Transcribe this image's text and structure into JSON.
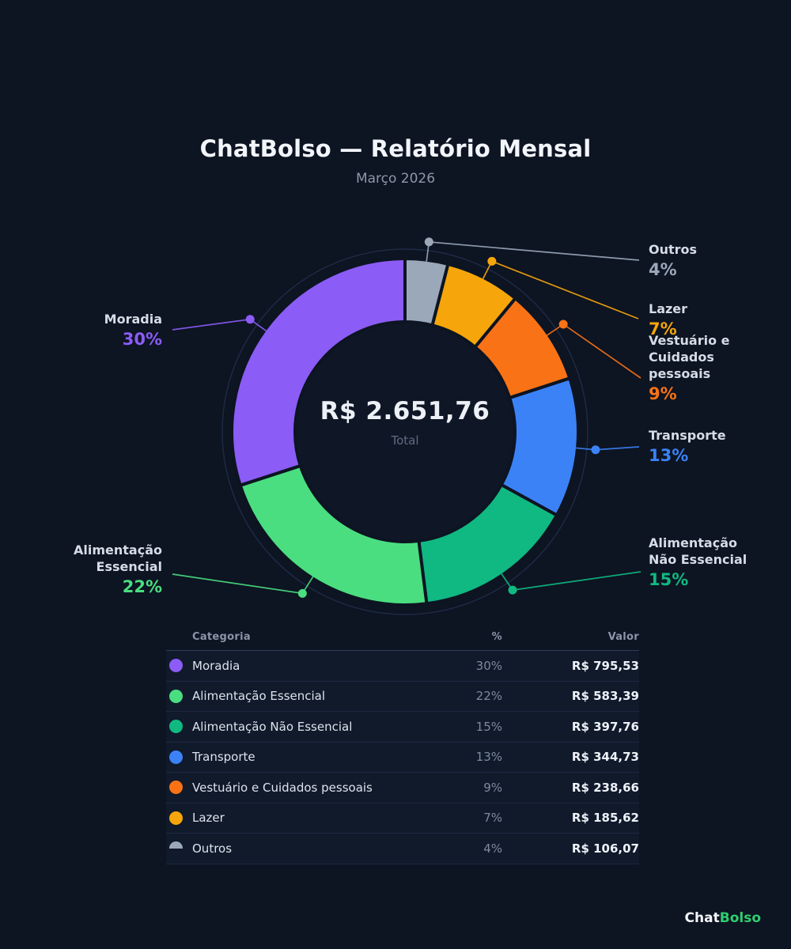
{
  "header": {
    "title": "ChatBolso — Relatório Mensal",
    "subtitle": "Março 2026"
  },
  "chart_data": {
    "type": "pie",
    "variant": "donut",
    "title": "ChatBolso — Relatório Mensal",
    "subtitle": "Março 2026",
    "center": {
      "total": "R$ 2.651,76",
      "label": "Total"
    },
    "categories": [
      "Moradia",
      "Alimentação Essencial",
      "Alimentação Não Essencial",
      "Transporte",
      "Vestuário e Cuidados pessoais",
      "Lazer",
      "Outros"
    ],
    "values_pct": [
      30,
      22,
      15,
      13,
      9,
      7,
      4
    ],
    "values_currency": [
      "R$ 795,53",
      "R$ 583,39",
      "R$ 397,76",
      "R$ 344,73",
      "R$ 238,66",
      "R$ 185,62",
      "R$ 106,07"
    ],
    "colors": [
      "#8b5cf6",
      "#4ade80",
      "#10b981",
      "#3b82f6",
      "#f97316",
      "#f6a60a",
      "#9aa8ba"
    ],
    "legend_position": "callouts-around-donut",
    "slice_order_clockwise_from_top": [
      "Outros",
      "Lazer",
      "Vestuário e Cuidados pessoais",
      "Transporte",
      "Alimentação Não Essencial",
      "Alimentação Essencial",
      "Moradia"
    ]
  },
  "callouts": [
    {
      "name": "Moradia",
      "pct": "30%"
    },
    {
      "name": "Alimentação Essencial",
      "pct": "22%"
    },
    {
      "name": "Alimentação Não Essencial",
      "pct": "15%"
    },
    {
      "name": "Transporte",
      "pct": "13%"
    },
    {
      "name": "Vestuário e Cuidados pessoais",
      "pct": "9%"
    },
    {
      "name": "Lazer",
      "pct": "7%"
    },
    {
      "name": "Outros",
      "pct": "4%"
    }
  ],
  "table": {
    "headers": [
      "Categoria",
      "%",
      "Valor"
    ],
    "rows": [
      {
        "category": "Moradia",
        "pct": "30%",
        "value": "R$ 795,53",
        "color": "#8b5cf6",
        "dot": "full"
      },
      {
        "category": "Alimentação Essencial",
        "pct": "22%",
        "value": "R$ 583,39",
        "color": "#4ade80",
        "dot": "full"
      },
      {
        "category": "Alimentação Não Essencial",
        "pct": "15%",
        "value": "R$ 397,76",
        "color": "#10b981",
        "dot": "full"
      },
      {
        "category": "Transporte",
        "pct": "13%",
        "value": "R$ 344,73",
        "color": "#3b82f6",
        "dot": "full"
      },
      {
        "category": "Vestuário e Cuidados pessoais",
        "pct": "9%",
        "value": "R$ 238,66",
        "color": "#f97316",
        "dot": "full"
      },
      {
        "category": "Lazer",
        "pct": "7%",
        "value": "R$ 185,62",
        "color": "#f6a60a",
        "dot": "full"
      },
      {
        "category": "Outros",
        "pct": "4%",
        "value": "R$ 106,07",
        "color": "#9aa8ba",
        "dot": "half"
      }
    ]
  },
  "footer": {
    "brand_chat": "Chat",
    "brand_bolso": "Bolso",
    "brand_bolso_color": "#2ecf70"
  }
}
